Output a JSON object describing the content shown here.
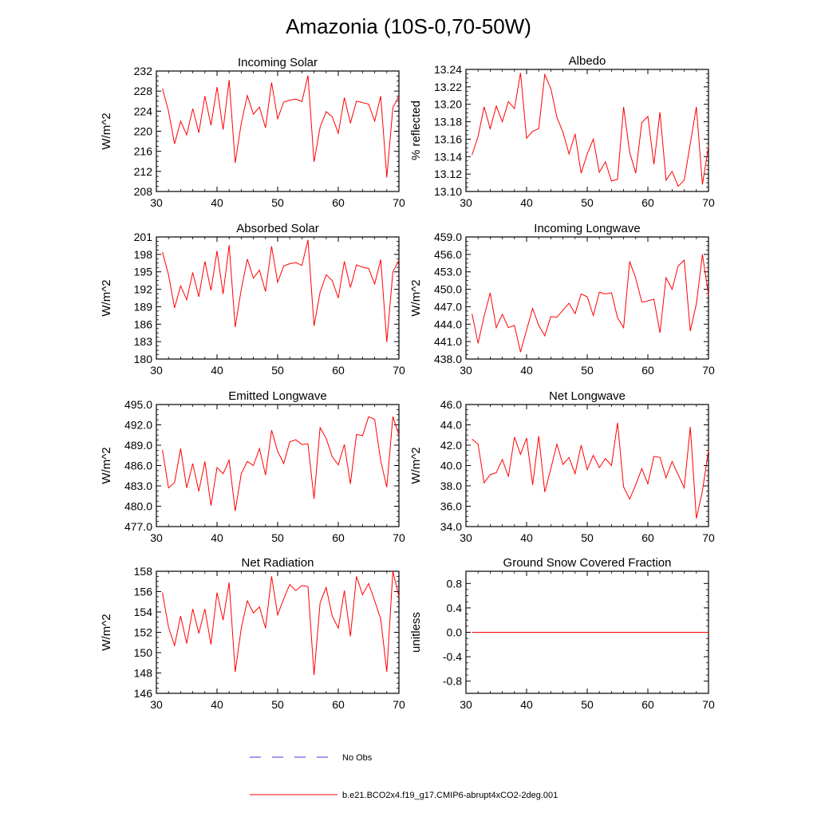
{
  "title": "Amazonia (10S-0,70-50W)",
  "colors": {
    "series": "#ff0000",
    "obs": "#3a3ad6",
    "axis": "#000000"
  },
  "legend": {
    "obs_label": "No Obs",
    "model_label": "b.e21.BCO2x4.f19_g17.CMIP6-abrupt4xCO2-2deg.001"
  },
  "chart_data": [
    {
      "type": "line",
      "title": "Incoming Solar",
      "ylabel": "W/m^2",
      "xlim": [
        30,
        70
      ],
      "ylim": [
        208,
        232
      ],
      "xticks": [
        30,
        40,
        50,
        60,
        70
      ],
      "yticks": [
        "208",
        "212",
        "216",
        "220",
        "224",
        "228",
        "232"
      ],
      "series": [
        {
          "x": [
            31,
            32,
            33,
            34,
            35,
            36,
            37,
            38,
            39,
            40,
            41,
            42,
            43,
            44,
            45,
            46,
            47,
            48,
            49,
            50,
            51,
            52,
            53,
            54,
            55,
            56,
            57,
            58,
            59,
            60,
            61,
            62,
            63,
            64,
            65,
            66,
            67,
            68,
            69,
            70
          ],
          "values": [
            228.5,
            224.0,
            217.5,
            222.0,
            219.3,
            224.5,
            219.7,
            227.0,
            221.2,
            228.8,
            220.3,
            230.2,
            213.7,
            221.6,
            227.1,
            223.4,
            224.8,
            220.7,
            229.7,
            222.5,
            225.8,
            226.2,
            226.4,
            225.9,
            231.1,
            213.9,
            220.8,
            223.9,
            222.9,
            219.6,
            226.7,
            221.6,
            226.0,
            225.7,
            225.4,
            222.0,
            227.0,
            210.8,
            224.7,
            227.0
          ]
        }
      ]
    },
    {
      "type": "line",
      "title": "Albedo",
      "ylabel": "% reflected",
      "xlim": [
        30,
        70
      ],
      "ylim": [
        13.1,
        13.24
      ],
      "xticks": [
        30,
        40,
        50,
        60,
        70
      ],
      "yticks": [
        "13.10",
        "13.12",
        "13.14",
        "13.16",
        "13.18",
        "13.20",
        "13.22",
        "13.24"
      ],
      "series": [
        {
          "x": [
            31,
            32,
            33,
            34,
            35,
            36,
            37,
            38,
            39,
            40,
            41,
            42,
            43,
            44,
            45,
            46,
            47,
            48,
            49,
            50,
            51,
            52,
            53,
            54,
            55,
            56,
            57,
            58,
            59,
            60,
            61,
            62,
            63,
            64,
            65,
            66,
            67,
            68,
            69,
            70
          ],
          "values": [
            13.142,
            13.163,
            13.197,
            13.172,
            13.198,
            13.18,
            13.203,
            13.195,
            13.236,
            13.161,
            13.169,
            13.172,
            13.234,
            13.218,
            13.185,
            13.168,
            13.143,
            13.166,
            13.121,
            13.143,
            13.16,
            13.122,
            13.134,
            13.112,
            13.114,
            13.197,
            13.145,
            13.121,
            13.179,
            13.186,
            13.131,
            13.191,
            13.113,
            13.123,
            13.106,
            13.113,
            13.155,
            13.197,
            13.108,
            13.152
          ]
        }
      ]
    },
    {
      "type": "line",
      "title": "Absorbed Solar",
      "ylabel": "W/m^2",
      "xlim": [
        30,
        70
      ],
      "ylim": [
        180,
        201
      ],
      "xticks": [
        30,
        40,
        50,
        60,
        70
      ],
      "yticks": [
        "180",
        "183",
        "186",
        "189",
        "192",
        "195",
        "198",
        "201"
      ],
      "series": [
        {
          "x": [
            31,
            32,
            33,
            34,
            35,
            36,
            37,
            38,
            39,
            40,
            41,
            42,
            43,
            44,
            45,
            46,
            47,
            48,
            49,
            50,
            51,
            52,
            53,
            54,
            55,
            56,
            57,
            58,
            59,
            60,
            61,
            62,
            63,
            64,
            65,
            66,
            67,
            68,
            69,
            70
          ],
          "values": [
            198.4,
            194.5,
            188.8,
            192.6,
            190.2,
            194.9,
            190.7,
            196.8,
            191.8,
            198.6,
            191.2,
            199.6,
            185.5,
            192.0,
            197.2,
            193.9,
            195.3,
            191.6,
            199.4,
            193.2,
            196.0,
            196.4,
            196.6,
            196.1,
            200.5,
            185.7,
            191.5,
            194.5,
            193.5,
            190.5,
            196.8,
            192.3,
            196.2,
            195.8,
            195.6,
            192.9,
            197.1,
            182.9,
            195.0,
            197.0
          ]
        }
      ]
    },
    {
      "type": "line",
      "title": "Incoming Longwave",
      "ylabel": "W/m^2",
      "xlim": [
        30,
        70
      ],
      "ylim": [
        438.0,
        459.0
      ],
      "xticks": [
        30,
        40,
        50,
        60,
        70
      ],
      "yticks": [
        "438.0",
        "441.0",
        "444.0",
        "447.0",
        "450.0",
        "453.0",
        "456.0",
        "459.0"
      ],
      "series": [
        {
          "x": [
            31,
            32,
            33,
            34,
            35,
            36,
            37,
            38,
            39,
            40,
            41,
            42,
            43,
            44,
            45,
            46,
            47,
            48,
            49,
            50,
            51,
            52,
            53,
            54,
            55,
            56,
            57,
            58,
            59,
            60,
            61,
            62,
            63,
            64,
            65,
            66,
            67,
            68,
            69,
            70
          ],
          "values": [
            445.8,
            440.7,
            445.4,
            449.4,
            443.4,
            445.7,
            443.4,
            443.8,
            439.2,
            443.0,
            446.7,
            443.8,
            442.0,
            445.3,
            445.2,
            446.4,
            447.6,
            445.8,
            449.2,
            448.7,
            445.5,
            449.5,
            449.2,
            449.4,
            445.1,
            443.4,
            454.8,
            451.9,
            447.8,
            448.0,
            448.3,
            442.5,
            452.0,
            450.0,
            454.0,
            455.0,
            442.8,
            447.5,
            456.0,
            449.0
          ]
        }
      ]
    },
    {
      "type": "line",
      "title": "Emitted Longwave",
      "ylabel": "W/m^2",
      "xlim": [
        30,
        70
      ],
      "ylim": [
        477.0,
        495.0
      ],
      "xticks": [
        30,
        40,
        50,
        60,
        70
      ],
      "yticks": [
        "477.0",
        "480.0",
        "483.0",
        "486.0",
        "489.0",
        "492.0",
        "495.0"
      ],
      "series": [
        {
          "x": [
            31,
            32,
            33,
            34,
            35,
            36,
            37,
            38,
            39,
            40,
            41,
            42,
            43,
            44,
            45,
            46,
            47,
            48,
            49,
            50,
            51,
            52,
            53,
            54,
            55,
            56,
            57,
            58,
            59,
            60,
            61,
            62,
            63,
            64,
            65,
            66,
            67,
            68,
            69,
            70
          ],
          "values": [
            488.3,
            482.7,
            483.5,
            488.5,
            482.7,
            486.3,
            482.2,
            486.6,
            480.1,
            485.7,
            484.8,
            486.8,
            479.3,
            484.8,
            486.6,
            486.0,
            488.5,
            484.6,
            491.2,
            488.1,
            486.3,
            489.5,
            489.8,
            489.1,
            489.2,
            481.1,
            491.6,
            490.0,
            487.3,
            486.1,
            489.1,
            483.3,
            490.6,
            490.4,
            493.2,
            492.8,
            486.7,
            482.8,
            493.2,
            490.5
          ]
        }
      ]
    },
    {
      "type": "line",
      "title": "Net Longwave",
      "ylabel": "W/m^2",
      "xlim": [
        30,
        70
      ],
      "ylim": [
        34.0,
        46.0
      ],
      "xticks": [
        30,
        40,
        50,
        60,
        70
      ],
      "yticks": [
        "34.0",
        "36.0",
        "38.0",
        "40.0",
        "42.0",
        "44.0",
        "46.0"
      ],
      "series": [
        {
          "x": [
            31,
            32,
            33,
            34,
            35,
            36,
            37,
            38,
            39,
            40,
            41,
            42,
            43,
            44,
            45,
            46,
            47,
            48,
            49,
            50,
            51,
            52,
            53,
            54,
            55,
            56,
            57,
            58,
            59,
            60,
            61,
            62,
            63,
            64,
            65,
            66,
            67,
            68,
            69,
            70
          ],
          "values": [
            42.6,
            42.1,
            38.3,
            39.1,
            39.3,
            40.6,
            38.9,
            42.8,
            41.1,
            42.7,
            38.1,
            42.9,
            37.4,
            39.7,
            42.1,
            40.1,
            40.8,
            39.2,
            42.0,
            39.6,
            41.0,
            39.8,
            40.7,
            40.0,
            44.2,
            37.9,
            36.7,
            38.1,
            39.7,
            38.2,
            40.9,
            40.8,
            38.8,
            40.4,
            39.1,
            37.8,
            43.8,
            34.8,
            37.5,
            41.5
          ]
        }
      ]
    },
    {
      "type": "line",
      "title": "Net Radiation",
      "ylabel": "W/m^2",
      "xlim": [
        30,
        70
      ],
      "ylim": [
        146,
        158
      ],
      "xticks": [
        30,
        40,
        50,
        60,
        70
      ],
      "yticks": [
        "146",
        "148",
        "150",
        "152",
        "154",
        "156",
        "158"
      ],
      "series": [
        {
          "x": [
            31,
            32,
            33,
            34,
            35,
            36,
            37,
            38,
            39,
            40,
            41,
            42,
            43,
            44,
            45,
            46,
            47,
            48,
            49,
            50,
            51,
            52,
            53,
            54,
            55,
            56,
            57,
            58,
            59,
            60,
            61,
            62,
            63,
            64,
            65,
            66,
            67,
            68,
            69,
            70
          ],
          "values": [
            155.9,
            152.5,
            150.7,
            153.6,
            150.9,
            154.3,
            151.9,
            154.3,
            150.8,
            155.9,
            153.2,
            156.9,
            148.1,
            152.4,
            155.1,
            153.9,
            154.5,
            152.4,
            157.5,
            153.7,
            155.3,
            156.7,
            156.1,
            156.6,
            156.5,
            147.8,
            154.9,
            156.4,
            153.6,
            152.4,
            156.1,
            151.6,
            157.5,
            155.7,
            156.8,
            155.1,
            153.3,
            148.1,
            158.0,
            155.5
          ]
        }
      ]
    },
    {
      "type": "line",
      "title": "Ground Snow Covered Fraction",
      "ylabel": "unitless",
      "xlim": [
        30,
        70
      ],
      "ylim": [
        -1.0,
        1.0
      ],
      "xticks": [
        30,
        40,
        50,
        60,
        70
      ],
      "yticks": [
        "-0.8",
        "-0.4",
        "0.0",
        "0.4",
        "0.8"
      ],
      "ytick_values": [
        -0.8,
        -0.4,
        0.0,
        0.4,
        0.8
      ],
      "series": [
        {
          "x": [
            31,
            70
          ],
          "values": [
            0.0,
            0.0
          ]
        }
      ]
    }
  ]
}
